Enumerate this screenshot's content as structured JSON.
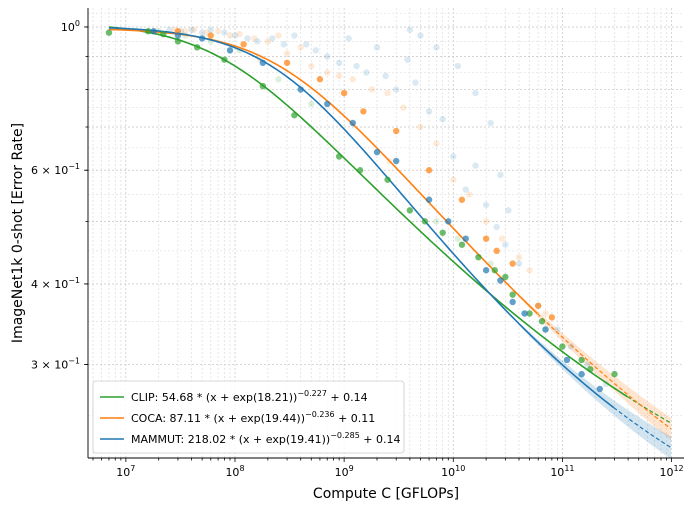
{
  "chart_data": {
    "type": "scatter",
    "title": "",
    "xlabel": "Compute C [GFLOPs]",
    "ylabel": "ImageNet1k 0-shot [Error Rate]",
    "xscale": "log",
    "yscale": "log",
    "xlim": [
      4500000.0,
      1300000000000.0
    ],
    "ylim": [
      0.215,
      1.07
    ],
    "grid": true,
    "legend_position": "lower-left",
    "x_ticks": [
      {
        "value": 10000000.0,
        "base": "10",
        "exp": "7"
      },
      {
        "value": 100000000.0,
        "base": "10",
        "exp": "8"
      },
      {
        "value": 1000000000.0,
        "base": "10",
        "exp": "9"
      },
      {
        "value": 10000000000.0,
        "base": "10",
        "exp": "10"
      },
      {
        "value": 100000000000.0,
        "base": "10",
        "exp": "11"
      },
      {
        "value": 1000000000000.0,
        "base": "10",
        "exp": "12"
      }
    ],
    "y_ticks": [
      {
        "value": 1.0,
        "base": "10",
        "exp": "0"
      },
      {
        "value": 0.6,
        "mant": "6 × ",
        "base": "10",
        "exp": "−1"
      },
      {
        "value": 0.4,
        "mant": "4 × ",
        "base": "10",
        "exp": "−1"
      },
      {
        "value": 0.3,
        "mant": "3 × ",
        "base": "10",
        "exp": "−1"
      }
    ],
    "series": [
      {
        "name": "CLIP",
        "color": "#2ca02c",
        "legend": {
          "main": "CLIP: 54.68 * (x + exp(18.21))",
          "exp": "−0.227",
          "tail": " + 0.14"
        },
        "fit": {
          "A": 54.68,
          "B": 18.21,
          "alpha": 0.227,
          "E": 0.14
        },
        "fit_solid_until": 400000000000.0,
        "band": false,
        "points": [
          [
            7000000.0,
            0.98
          ],
          [
            16000000.0,
            0.985
          ],
          [
            22000000.0,
            0.975
          ],
          [
            30000000.0,
            0.95
          ],
          [
            45000000.0,
            0.93
          ],
          [
            80000000.0,
            0.89
          ],
          [
            180000000.0,
            0.81
          ],
          [
            350000000.0,
            0.73
          ],
          [
            900000000.0,
            0.63
          ],
          [
            1400000000.0,
            0.6
          ],
          [
            2500000000.0,
            0.58
          ],
          [
            4000000000.0,
            0.52
          ],
          [
            5500000000.0,
            0.5
          ],
          [
            8000000000.0,
            0.48
          ],
          [
            12000000000.0,
            0.46
          ],
          [
            17000000000.0,
            0.44
          ],
          [
            24000000000.0,
            0.42
          ],
          [
            30000000000.0,
            0.41
          ],
          [
            35000000000.0,
            0.385
          ],
          [
            50000000000.0,
            0.36
          ],
          [
            65000000000.0,
            0.35
          ],
          [
            100000000000.0,
            0.32
          ],
          [
            150000000000.0,
            0.305
          ],
          [
            180000000000.0,
            0.295
          ],
          [
            300000000000.0,
            0.29
          ]
        ]
      },
      {
        "name": "COCA",
        "color": "#ff7f0e",
        "legend": {
          "main": "COCA: 87.11 * (x + exp(19.44))",
          "exp": "−0.236",
          "tail": " + 0.11"
        },
        "fit": {
          "A": 87.11,
          "B": 19.44,
          "alpha": 0.236,
          "E": 0.11
        },
        "fit_solid_until": 60000000000.0,
        "band": true,
        "points": [
          [
            30000000.0,
            0.985
          ],
          [
            60000000.0,
            0.97
          ],
          [
            120000000.0,
            0.94
          ],
          [
            300000000.0,
            0.88
          ],
          [
            600000000.0,
            0.83
          ],
          [
            1000000000.0,
            0.79
          ],
          [
            1500000000.0,
            0.74
          ],
          [
            3000000000.0,
            0.69
          ],
          [
            6000000000.0,
            0.6
          ],
          [
            12000000000.0,
            0.54
          ],
          [
            20000000000.0,
            0.47
          ],
          [
            25000000000.0,
            0.45
          ],
          [
            35000000000.0,
            0.43
          ],
          [
            60000000000.0,
            0.37
          ],
          [
            80000000000.0,
            0.355
          ]
        ]
      },
      {
        "name": "MAMMUT",
        "color": "#1f77b4",
        "legend": {
          "main": "MAMMUT: 218.02 * (x + exp(19.41))",
          "exp": "−0.285",
          "tail": " + 0.14"
        },
        "fit": {
          "A": 218.02,
          "B": 19.41,
          "alpha": 0.285,
          "E": 0.14
        },
        "fit_solid_until": 300000000000.0,
        "band": true,
        "points": [
          [
            18000000.0,
            0.985
          ],
          [
            30000000.0,
            0.97
          ],
          [
            50000000.0,
            0.96
          ],
          [
            90000000.0,
            0.92
          ],
          [
            180000000.0,
            0.88
          ],
          [
            400000000.0,
            0.8
          ],
          [
            700000000.0,
            0.76
          ],
          [
            1200000000.0,
            0.71
          ],
          [
            2000000000.0,
            0.64
          ],
          [
            3000000000.0,
            0.62
          ],
          [
            6000000000.0,
            0.54
          ],
          [
            9000000000.0,
            0.5
          ],
          [
            13000000000.0,
            0.47
          ],
          [
            20000000000.0,
            0.42
          ],
          [
            27000000000.0,
            0.405
          ],
          [
            35000000000.0,
            0.375
          ],
          [
            45000000000.0,
            0.36
          ],
          [
            70000000000.0,
            0.34
          ],
          [
            110000000000.0,
            0.305
          ],
          [
            150000000000.0,
            0.29
          ],
          [
            220000000000.0,
            0.275
          ]
        ]
      }
    ],
    "faint_points": [
      [
        28000000.0,
        0.99,
        "#ff7f0e"
      ],
      [
        35000000.0,
        0.985,
        "#ff7f0e"
      ],
      [
        42000000.0,
        0.99,
        "#ff7f0e"
      ],
      [
        55000000.0,
        0.98,
        "#ff7f0e"
      ],
      [
        70000000.0,
        0.985,
        "#ff7f0e"
      ],
      [
        90000000.0,
        0.97,
        "#ff7f0e"
      ],
      [
        110000000.0,
        0.975,
        "#ff7f0e"
      ],
      [
        150000000.0,
        0.96,
        "#ff7f0e"
      ],
      [
        200000000.0,
        0.95,
        "#ff7f0e"
      ],
      [
        250000000.0,
        0.97,
        "#ff7f0e"
      ],
      [
        300000000.0,
        0.91,
        "#ff7f0e"
      ],
      [
        400000000.0,
        0.93,
        "#ff7f0e"
      ],
      [
        500000000.0,
        0.87,
        "#ff7f0e"
      ],
      [
        700000000.0,
        0.85,
        "#ff7f0e"
      ],
      [
        900000000.0,
        0.84,
        "#ff7f0e"
      ],
      [
        1200000000.0,
        0.83,
        "#ff7f0e"
      ],
      [
        1800000000.0,
        0.8,
        "#ff7f0e"
      ],
      [
        2500000000.0,
        0.79,
        "#ff7f0e"
      ],
      [
        3500000000.0,
        0.75,
        "#ff7f0e"
      ],
      [
        5000000000.0,
        0.7,
        "#ff7f0e"
      ],
      [
        7000000000.0,
        0.66,
        "#ff7f0e"
      ],
      [
        10000000000.0,
        0.58,
        "#ff7f0e"
      ],
      [
        14000000000.0,
        0.55,
        "#ff7f0e"
      ],
      [
        20000000000.0,
        0.5,
        "#ff7f0e"
      ],
      [
        28000000000.0,
        0.47,
        "#ff7f0e"
      ],
      [
        40000000000.0,
        0.44,
        "#ff7f0e"
      ],
      [
        50000000000.0,
        0.42,
        "#ff7f0e"
      ],
      [
        70000000000.0,
        0.36,
        "#ff7f0e"
      ],
      [
        170000000.0,
        0.89,
        "#ff7f0e"
      ],
      [
        2600000000.0,
        0.62,
        "#ff7f0e"
      ],
      [
        25000000.0,
        0.99,
        "#1f77b4"
      ],
      [
        32000000.0,
        0.985,
        "#1f77b4"
      ],
      [
        40000000.0,
        0.99,
        "#1f77b4"
      ],
      [
        50000000.0,
        0.98,
        "#1f77b4"
      ],
      [
        60000000.0,
        0.99,
        "#1f77b4"
      ],
      [
        80000000.0,
        0.98,
        "#1f77b4"
      ],
      [
        100000000.0,
        0.97,
        "#1f77b4"
      ],
      [
        130000000.0,
        0.96,
        "#1f77b4"
      ],
      [
        160000000.0,
        0.95,
        "#1f77b4"
      ],
      [
        220000000.0,
        0.96,
        "#1f77b4"
      ],
      [
        280000000.0,
        0.94,
        "#1f77b4"
      ],
      [
        350000000.0,
        0.97,
        "#1f77b4"
      ],
      [
        450000000.0,
        0.94,
        "#1f77b4"
      ],
      [
        550000000.0,
        0.92,
        "#1f77b4"
      ],
      [
        700000000.0,
        0.9,
        "#1f77b4"
      ],
      [
        900000000.0,
        0.88,
        "#1f77b4"
      ],
      [
        1100000000.0,
        0.96,
        "#1f77b4"
      ],
      [
        1300000000.0,
        0.87,
        "#1f77b4"
      ],
      [
        1600000000.0,
        0.85,
        "#1f77b4"
      ],
      [
        2000000000.0,
        0.93,
        "#1f77b4"
      ],
      [
        2400000000.0,
        0.84,
        "#1f77b4"
      ],
      [
        3000000000.0,
        0.8,
        "#1f77b4"
      ],
      [
        3800000000.0,
        0.89,
        "#1f77b4"
      ],
      [
        4500000000.0,
        0.82,
        "#1f77b4"
      ],
      [
        6000000000.0,
        0.74,
        "#1f77b4"
      ],
      [
        8000000000.0,
        0.72,
        "#1f77b4"
      ],
      [
        10000000000.0,
        0.63,
        "#1f77b4"
      ],
      [
        13000000000.0,
        0.56,
        "#1f77b4"
      ],
      [
        16000000000.0,
        0.61,
        "#1f77b4"
      ],
      [
        20000000000.0,
        0.53,
        "#1f77b4"
      ],
      [
        25000000000.0,
        0.49,
        "#1f77b4"
      ],
      [
        30000000000.0,
        0.46,
        "#1f77b4"
      ],
      [
        40000000000.0,
        0.43,
        "#1f77b4"
      ],
      [
        60000000000.0,
        0.37,
        "#1f77b4"
      ],
      [
        90000000000.0,
        0.34,
        "#1f77b4"
      ],
      [
        120000000000.0,
        0.32,
        "#1f77b4"
      ],
      [
        170000000000.0,
        0.3,
        "#1f77b4"
      ],
      [
        250000000000.0,
        0.28,
        "#1f77b4"
      ],
      [
        4000000000.0,
        0.99,
        "#1f77b4"
      ],
      [
        5000000000.0,
        0.97,
        "#1f77b4"
      ],
      [
        7000000000.0,
        0.93,
        "#1f77b4"
      ],
      [
        11000000000.0,
        0.87,
        "#1f77b4"
      ],
      [
        16000000000.0,
        0.79,
        "#1f77b4"
      ],
      [
        22000000000.0,
        0.71,
        "#1f77b4"
      ],
      [
        27000000000.0,
        0.59,
        "#1f77b4"
      ],
      [
        32000000000.0,
        0.52,
        "#1f77b4"
      ],
      [
        20000000.0,
        0.985,
        "#2ca02c"
      ],
      [
        35000000.0,
        0.97,
        "#2ca02c"
      ],
      [
        60000000.0,
        0.95,
        "#2ca02c"
      ],
      [
        110000000.0,
        0.92,
        "#2ca02c"
      ],
      [
        250000000.0,
        0.83,
        "#2ca02c"
      ],
      [
        500000000.0,
        0.76,
        "#2ca02c"
      ],
      [
        7000000000.0,
        0.5,
        "#2ca02c"
      ],
      [
        11000000000.0,
        0.47,
        "#2ca02c"
      ],
      [
        22000000000.0,
        0.43,
        "#2ca02c"
      ],
      [
        70000000000.0,
        0.34,
        "#2ca02c"
      ]
    ]
  }
}
